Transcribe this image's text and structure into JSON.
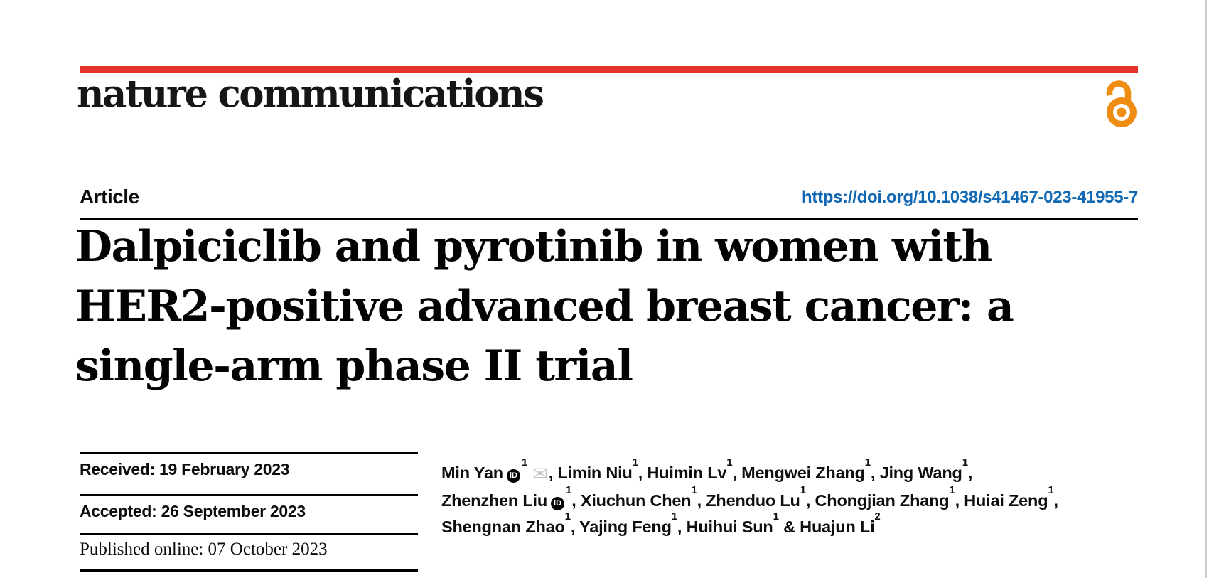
{
  "page": {
    "journal_name": "nature communications",
    "article_type": "Article",
    "doi_link": "https://doi.org/10.1038/s41467-023-41955-7",
    "title_lines": [
      "Dalpiciclib and pyrotinib in women with",
      "HER2-positive advanced breast cancer: a",
      "single-arm phase II trial"
    ]
  },
  "dates": {
    "received": "Received: 19 February 2023",
    "accepted": "Accepted: 26 September 2023",
    "published": "Published online: 07 October 2023"
  },
  "authors": {
    "lines": [
      [
        {
          "name": "Min Yan",
          "orcid": true,
          "sup": "1",
          "email": true,
          "tail": ", "
        },
        {
          "name": "Limin Niu",
          "sup": "1",
          "tail": ", "
        },
        {
          "name": "Huimin Lv",
          "sup": "1",
          "tail": ", "
        },
        {
          "name": "Mengwei Zhang",
          "sup": "1",
          "tail": ", "
        },
        {
          "name": "Jing Wang",
          "sup": "1",
          "tail": ","
        }
      ],
      [
        {
          "name": "Zhenzhen Liu",
          "orcid": true,
          "sup": "1",
          "tail": ", "
        },
        {
          "name": "Xiuchun Chen",
          "sup": "1",
          "tail": ", "
        },
        {
          "name": "Zhenduo Lu",
          "sup": "1",
          "tail": ", "
        },
        {
          "name": "Chongjian Zhang",
          "sup": "1",
          "tail": ", "
        },
        {
          "name": "Huiai Zeng",
          "sup": "1",
          "tail": ","
        }
      ],
      [
        {
          "name": "Shengnan Zhao",
          "sup": "1",
          "tail": ", "
        },
        {
          "name": "Yajing Feng",
          "sup": "1",
          "tail": ", "
        },
        {
          "name": "Huihui Sun",
          "sup": "1",
          "tail": " & "
        },
        {
          "name": "Huajun Li",
          "sup": "2",
          "tail": ""
        }
      ]
    ]
  },
  "icons": {
    "orcid_glyph": "iD",
    "email_glyph": "✉"
  },
  "colors": {
    "brand_red": "#e5332b",
    "link_blue": "#1268b2",
    "open_access_orange": "#ef8d13",
    "rule_black": "#000000",
    "page_edge_gray": "#cccccc"
  }
}
